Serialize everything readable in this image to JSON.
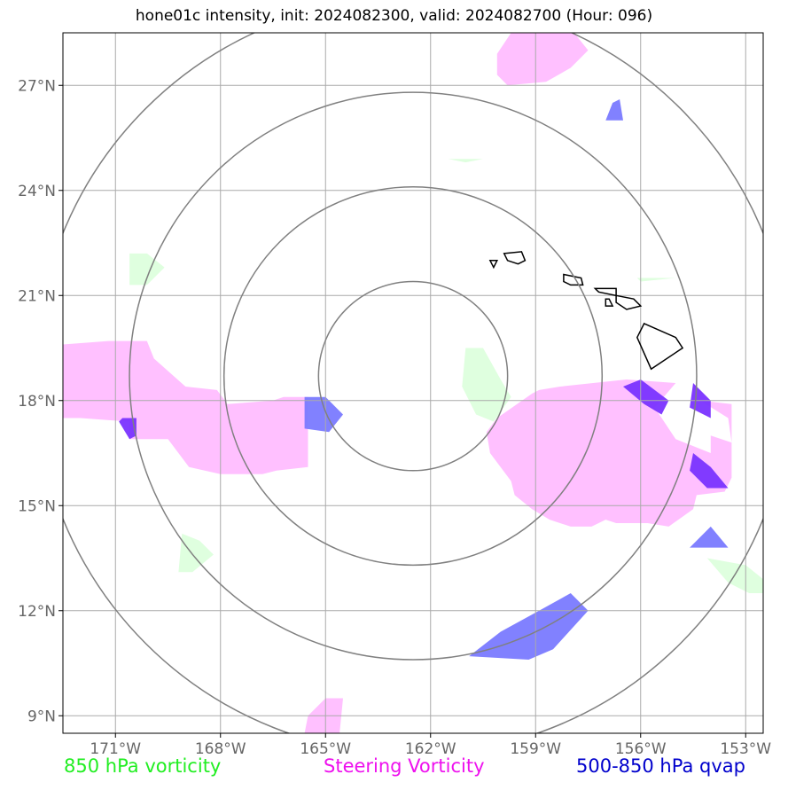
{
  "title": "hone01c intensity, init: 2024082300, valid: 2024082700 (Hour: 096)",
  "legend": {
    "green": "850 hPa vorticity",
    "magenta": "Steering Vorticity",
    "blue": "500-850 hPa qvap"
  },
  "colors": {
    "green": "#22ee22",
    "magenta": "#ee11ee",
    "blue": "#0000cc",
    "green_fill": "#dfffdf",
    "magenta_fill": "#ffc0ff",
    "blue_fill": "#7a7aff",
    "purple_fill": "#7a33ff",
    "grid": "#aaaaaa",
    "ring": "#808080"
  },
  "map": {
    "lon_range": [
      -172.5,
      -152.5
    ],
    "lat_range": [
      8.5,
      28.5
    ],
    "center": {
      "lon": -162.5,
      "lat": 18.7
    },
    "ring_radii_deg": [
      2.7,
      5.4,
      8.1,
      10.8
    ]
  },
  "axes": {
    "x_ticks": [
      {
        "lon": -171,
        "label": "171°W"
      },
      {
        "lon": -168,
        "label": "168°W"
      },
      {
        "lon": -165,
        "label": "165°W"
      },
      {
        "lon": -162,
        "label": "162°W"
      },
      {
        "lon": -159,
        "label": "159°W"
      },
      {
        "lon": -156,
        "label": "156°W"
      },
      {
        "lon": -153,
        "label": "153°W"
      }
    ],
    "y_ticks": [
      {
        "lat": 9,
        "label": "9°N"
      },
      {
        "lat": 12,
        "label": "12°N"
      },
      {
        "lat": 15,
        "label": "15°N"
      },
      {
        "lat": 18,
        "label": "18°N"
      },
      {
        "lat": 21,
        "label": "21°N"
      },
      {
        "lat": 24,
        "label": "24°N"
      },
      {
        "lat": 27,
        "label": "27°N"
      }
    ]
  },
  "regions": {
    "steering_vorticity": [
      [
        [
          -172.5,
          19.6
        ],
        [
          -172.5,
          17.5
        ],
        [
          -172,
          17.5
        ],
        [
          -170.6,
          17.4
        ],
        [
          -170.6,
          16.9
        ],
        [
          -169.5,
          16.9
        ],
        [
          -168.9,
          16.1
        ],
        [
          -168,
          15.9
        ],
        [
          -167.8,
          15.9
        ],
        [
          -166.8,
          15.9
        ],
        [
          -166.4,
          16
        ],
        [
          -165.5,
          16.1
        ],
        [
          -165.5,
          18.1
        ],
        [
          -166.2,
          18.1
        ],
        [
          -166.5,
          18
        ],
        [
          -167.8,
          17.9
        ],
        [
          -168.1,
          18.3
        ],
        [
          -169,
          18.4
        ],
        [
          -169.9,
          19.2
        ],
        [
          -170.1,
          19.7
        ],
        [
          -171.2,
          19.7
        ]
      ],
      [
        [
          -160.1,
          17.5
        ],
        [
          -159.1,
          18.2
        ],
        [
          -158.9,
          18.3
        ],
        [
          -158.3,
          18.4
        ],
        [
          -156.4,
          18.6
        ],
        [
          -155,
          18.5
        ],
        [
          -155.6,
          17.8
        ],
        [
          -155,
          16.9
        ],
        [
          -154,
          16.5
        ],
        [
          -154,
          17
        ],
        [
          -153.4,
          16.8
        ],
        [
          -153.5,
          17.5
        ],
        [
          -154.3,
          18
        ],
        [
          -153.4,
          17.9
        ],
        [
          -153.4,
          15.8
        ],
        [
          -153.6,
          15.4
        ],
        [
          -154.4,
          15.3
        ],
        [
          -154.5,
          14.9
        ],
        [
          -155.2,
          14.4
        ],
        [
          -155.8,
          14.5
        ],
        [
          -156.7,
          14.5
        ],
        [
          -157,
          14.6
        ],
        [
          -157.4,
          14.4
        ],
        [
          -158,
          14.4
        ],
        [
          -158.6,
          14.6
        ],
        [
          -159.1,
          14.9
        ],
        [
          -159.6,
          15.3
        ],
        [
          -159.7,
          15.7
        ],
        [
          -160.3,
          16.5
        ],
        [
          -160.4,
          17.1
        ]
      ],
      [
        [
          -160.1,
          27.9
        ],
        [
          -159.7,
          28.5
        ],
        [
          -157.9,
          28.5
        ],
        [
          -157.5,
          28.0
        ],
        [
          -158,
          27.5
        ],
        [
          -158.7,
          27.1
        ],
        [
          -159.8,
          27
        ],
        [
          -160.1,
          27.3
        ]
      ],
      [
        [
          -165.5,
          9.0
        ],
        [
          -165.0,
          9.5
        ],
        [
          -164.5,
          9.5
        ],
        [
          -164.6,
          8.5
        ],
        [
          -165.6,
          8.5
        ]
      ]
    ],
    "qvap": [
      [
        [
          -165.6,
          18.1
        ],
        [
          -165,
          18.1
        ],
        [
          -164.5,
          17.6
        ],
        [
          -164.9,
          17.1
        ],
        [
          -165.6,
          17.2
        ]
      ],
      [
        [
          -160.9,
          10.7
        ],
        [
          -159.2,
          10.6
        ],
        [
          -158.5,
          10.9
        ],
        [
          -157.5,
          12.0
        ],
        [
          -158,
          12.5
        ],
        [
          -158.9,
          12
        ],
        [
          -160,
          11.4
        ]
      ],
      [
        [
          -156,
          18.6
        ],
        [
          -155.2,
          18
        ],
        [
          -155.4,
          17.6
        ],
        [
          -155.9,
          17.9
        ],
        [
          -156.5,
          18.4
        ]
      ],
      [
        [
          -154.5,
          18.5
        ],
        [
          -154.0,
          18.0
        ],
        [
          -154,
          17.5
        ],
        [
          -154.6,
          17.8
        ]
      ],
      [
        [
          -154.5,
          16.5
        ],
        [
          -154.0,
          16.1
        ],
        [
          -153.5,
          15.5
        ],
        [
          -154.1,
          15.5
        ],
        [
          -154.6,
          16.0
        ]
      ],
      [
        [
          -154.6,
          13.8
        ],
        [
          -154.0,
          14.4
        ],
        [
          -153.5,
          13.8
        ]
      ],
      [
        [
          -156.8,
          26.5
        ],
        [
          -156.6,
          26.6
        ],
        [
          -156.5,
          26
        ],
        [
          -157.0,
          26
        ]
      ],
      [
        [
          -170.8,
          17.5
        ],
        [
          -170.4,
          17.5
        ],
        [
          -170.4,
          17
        ],
        [
          -170.6,
          16.9
        ],
        [
          -170.9,
          17.4
        ]
      ]
    ],
    "vorticity850": [
      [
        [
          -161.0,
          19.5
        ],
        [
          -160.5,
          19.5
        ],
        [
          -160,
          18.6
        ],
        [
          -159.7,
          18.1
        ],
        [
          -160.2,
          17.4
        ],
        [
          -160.7,
          17.6
        ],
        [
          -161.1,
          18.4
        ]
      ],
      [
        [
          -170.6,
          22.2
        ],
        [
          -170.1,
          22.2
        ],
        [
          -169.6,
          21.8
        ],
        [
          -170.1,
          21.3
        ],
        [
          -170.6,
          21.3
        ]
      ],
      [
        [
          -169.1,
          14.2
        ],
        [
          -168.6,
          14.0
        ],
        [
          -168.2,
          13.6
        ],
        [
          -168.8,
          13.1
        ],
        [
          -169.2,
          13.1
        ]
      ],
      [
        [
          -154.1,
          13.5
        ],
        [
          -153.0,
          13.3
        ],
        [
          -152.5,
          12.9
        ],
        [
          -152.5,
          12.5
        ],
        [
          -152.9,
          12.5
        ],
        [
          -153.5,
          12.8
        ]
      ],
      [
        [
          -161.5,
          24.9
        ],
        [
          -160.5,
          24.9
        ],
        [
          -161,
          24.8
        ]
      ],
      [
        [
          -156.1,
          21.5
        ],
        [
          -155,
          21.5
        ],
        [
          -156,
          21.4
        ]
      ]
    ],
    "islands": [
      [
        [
          -159.9,
          22.2
        ],
        [
          -159.4,
          22.25
        ],
        [
          -159.3,
          22.0
        ],
        [
          -159.5,
          21.9
        ],
        [
          -159.8,
          22.0
        ]
      ],
      [
        [
          -158.2,
          21.6
        ],
        [
          -157.7,
          21.5
        ],
        [
          -157.65,
          21.3
        ],
        [
          -158.0,
          21.3
        ],
        [
          -158.2,
          21.4
        ]
      ],
      [
        [
          -157.3,
          21.2
        ],
        [
          -156.7,
          21.2
        ],
        [
          -156.7,
          21.0
        ],
        [
          -157.2,
          21.1
        ]
      ],
      [
        [
          -156.7,
          21.0
        ],
        [
          -156.2,
          20.9
        ],
        [
          -156.0,
          20.7
        ],
        [
          -156.4,
          20.6
        ],
        [
          -156.7,
          20.8
        ]
      ],
      [
        [
          -157.0,
          20.9
        ],
        [
          -156.9,
          20.9
        ],
        [
          -156.8,
          20.7
        ],
        [
          -157.0,
          20.7
        ]
      ],
      [
        [
          -160.3,
          22.0
        ],
        [
          -160.1,
          22.0
        ],
        [
          -160.2,
          21.8
        ]
      ],
      [
        [
          -155.9,
          20.2
        ],
        [
          -155.0,
          19.8
        ],
        [
          -154.8,
          19.5
        ],
        [
          -155.7,
          18.9
        ],
        [
          -156.1,
          19.8
        ]
      ]
    ]
  }
}
